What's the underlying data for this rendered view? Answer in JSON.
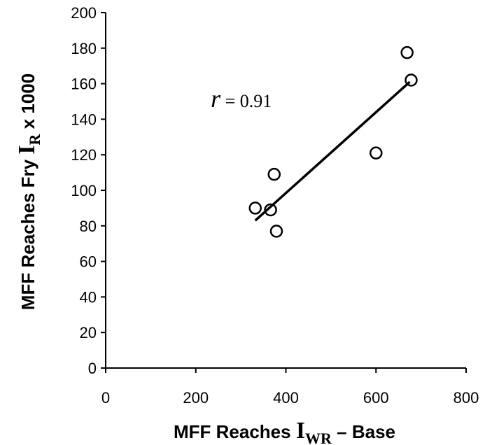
{
  "chart_data": {
    "type": "scatter",
    "title": "",
    "xlabel": {
      "prefix": "MFF Reaches ",
      "symbol": "I",
      "subscript": "WR",
      "suffix": " – Base"
    },
    "ylabel": {
      "prefix": "MFF Reaches Fry ",
      "symbol": "I",
      "subscript": "R",
      "suffix": " x 1000"
    },
    "xlim": [
      0,
      800
    ],
    "ylim": [
      0,
      200
    ],
    "xticks": [
      "0",
      "200",
      "400",
      "600",
      "800"
    ],
    "yticks": [
      "0",
      "20",
      "40",
      "60",
      "80",
      "100",
      "120",
      "140",
      "160",
      "180",
      "200"
    ],
    "grid": false,
    "legend": "none",
    "marker": "open-circle",
    "series": [
      {
        "x": [
          332,
          366,
          374,
          379,
          600,
          669,
          678
        ],
        "y": [
          90,
          89,
          109,
          77,
          121,
          177.5,
          162
        ]
      }
    ],
    "trendline": {
      "x": [
        332,
        675
      ],
      "y": [
        83,
        161
      ]
    },
    "annotation": {
      "symbol": "r",
      "text": " = 0.91",
      "x": 230,
      "y": 148
    },
    "colors": {
      "marker": "#000000",
      "line": "#000000",
      "axis": "#000000"
    }
  }
}
